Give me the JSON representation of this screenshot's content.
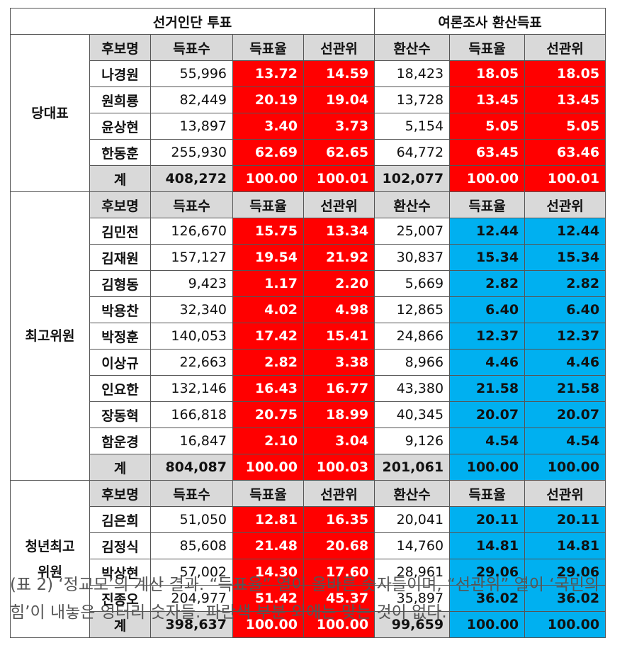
{
  "table": {
    "group_headers": {
      "election": "선거인단 투표",
      "poll": "여론조사 환산득표"
    },
    "columns": [
      "후보명",
      "득표수",
      "득표율",
      "선관위",
      "환산수",
      "득표율",
      "선관위"
    ],
    "total_label": "계",
    "sections": [
      {
        "label": "당대표",
        "rows": [
          [
            "나경원",
            "55,996",
            "13.72",
            "14.59",
            "18,423",
            "18.05",
            "18.05"
          ],
          [
            "원희룡",
            "82,449",
            "20.19",
            "19.04",
            "13,728",
            "13.45",
            "13.45"
          ],
          [
            "윤상현",
            "13,897",
            "3.40",
            "3.73",
            "5,154",
            "5.05",
            "5.05"
          ],
          [
            "한동훈",
            "255,930",
            "62.69",
            "62.65",
            "64,772",
            "63.45",
            "63.46"
          ]
        ],
        "total": [
          "408,272",
          "100.00",
          "100.01",
          "102,077",
          "100.00",
          "100.01"
        ]
      },
      {
        "label": "최고위원",
        "rows": [
          [
            "김민전",
            "126,670",
            "15.75",
            "13.34",
            "25,007",
            "12.44",
            "12.44"
          ],
          [
            "김재원",
            "157,127",
            "19.54",
            "21.92",
            "30,837",
            "15.34",
            "15.34"
          ],
          [
            "김형동",
            "9,423",
            "1.17",
            "2.20",
            "5,669",
            "2.82",
            "2.82"
          ],
          [
            "박용찬",
            "32,340",
            "4.02",
            "4.98",
            "12,865",
            "6.40",
            "6.40"
          ],
          [
            "박정훈",
            "140,053",
            "17.42",
            "15.41",
            "24,866",
            "12.37",
            "12.37"
          ],
          [
            "이상규",
            "22,663",
            "2.82",
            "3.38",
            "8,966",
            "4.46",
            "4.46"
          ],
          [
            "인요한",
            "132,146",
            "16.43",
            "16.77",
            "43,380",
            "21.58",
            "21.58"
          ],
          [
            "장동혁",
            "166,818",
            "20.75",
            "18.99",
            "40,345",
            "20.07",
            "20.07"
          ],
          [
            "함운경",
            "16,847",
            "2.10",
            "3.04",
            "9,126",
            "4.54",
            "4.54"
          ]
        ],
        "total": [
          "804,087",
          "100.00",
          "100.03",
          "201,061",
          "100.00",
          "100.00"
        ]
      },
      {
        "label": "청년최고위원",
        "rows": [
          [
            "김은희",
            "51,050",
            "12.81",
            "16.35",
            "20,041",
            "20.11",
            "20.11"
          ],
          [
            "김정식",
            "85,608",
            "21.48",
            "20.68",
            "14,760",
            "14.81",
            "14.81"
          ],
          [
            "박상현",
            "57,002",
            "14.30",
            "17.60",
            "28,961",
            "29.06",
            "29.06"
          ],
          [
            "진종오",
            "204,977",
            "51.42",
            "45.37",
            "35,897",
            "36.02",
            "36.02"
          ]
        ],
        "total": [
          "398,637",
          "100.00",
          "100.00",
          "99,659",
          "100.00",
          "100.00"
        ]
      }
    ]
  },
  "colors": {
    "red": "#ff0000",
    "blue": "#00b0f0",
    "header_gray": "#d9d9d9"
  },
  "caption": "(표 2) ‘정교모’의 계산 결과. “득표율” 열이 올바른 숫자들이며, “선관위” 열이 ‘국민의힘’이 내놓은 엉터리 숫자들. 파란색 부분 외에는 맞는 것이 없다."
}
